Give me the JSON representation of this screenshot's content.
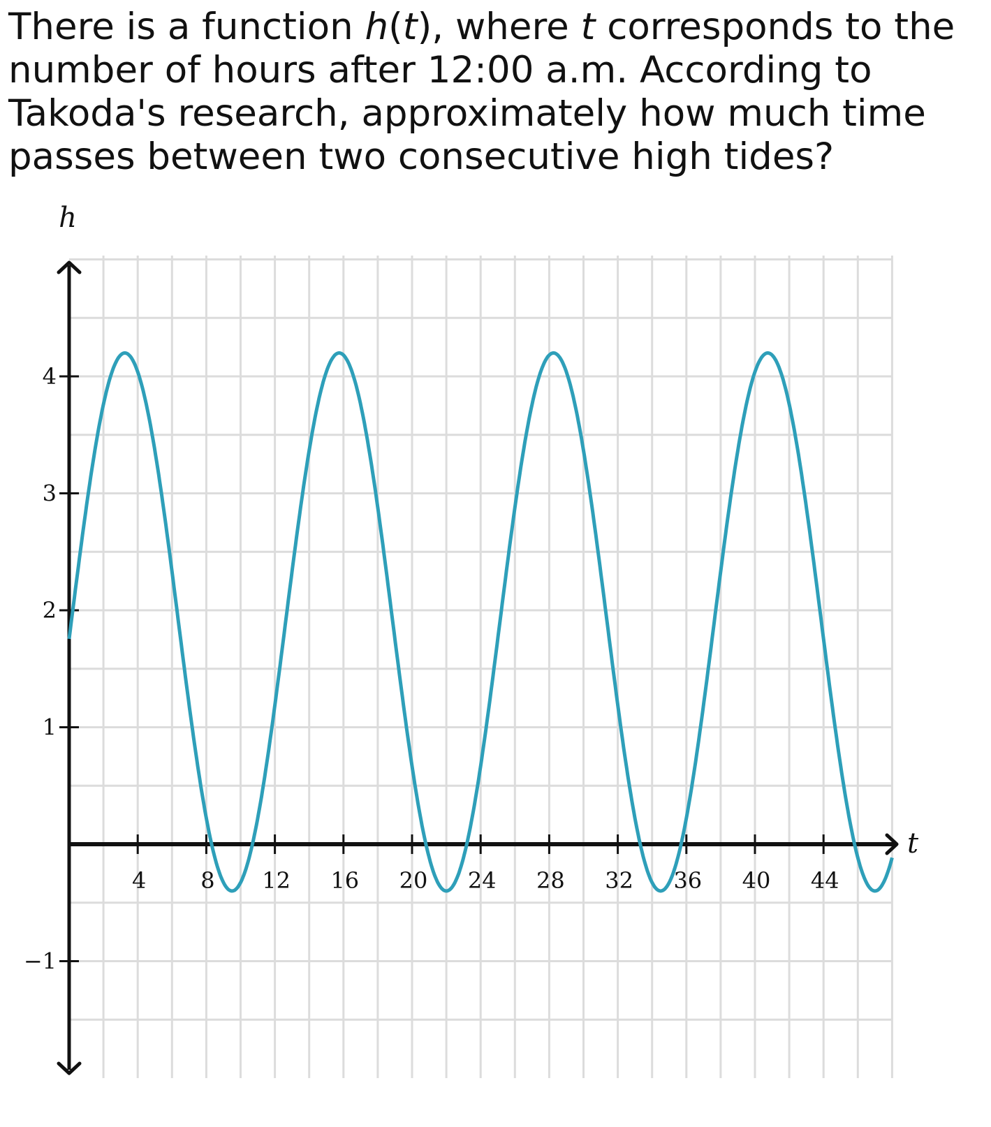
{
  "question": {
    "p1": "There is a function ",
    "func_name": "h",
    "p2": "(",
    "var1": "t",
    "p3": "), where ",
    "var2": "t",
    "p4": " corresponds to the number of hours after 12:00 a.m. According to Takoda's research, approximately how much time passes between two consecutive high tides?"
  },
  "chart_data": {
    "type": "line",
    "title": "",
    "xlabel": "t",
    "ylabel": "h",
    "xlim": [
      0,
      48
    ],
    "ylim": [
      -1.9,
      5
    ],
    "x_ticks": [
      4,
      8,
      12,
      16,
      20,
      24,
      28,
      32,
      36,
      40,
      44
    ],
    "x_tick_labels": [
      "4",
      "8",
      "12",
      "16",
      "20",
      "24",
      "28",
      "32",
      "36",
      "40",
      "44"
    ],
    "y_ticks": [
      -1,
      1,
      2,
      3,
      4
    ],
    "y_tick_labels": [
      "−1",
      "1",
      "2",
      "3",
      "4"
    ],
    "x_grid_step": 2,
    "y_grid_step": 0.5,
    "grid": true,
    "series": [
      {
        "color": "#2e9fb9",
        "function": {
          "kind": "sinusoid",
          "midline": 1.9,
          "amplitude": 2.3,
          "period": 12.5,
          "peak_at": 3.25
        },
        "x_range": [
          0,
          48
        ]
      }
    ],
    "colors": {
      "axis": "#111111",
      "grid": "#dcdcdc"
    }
  }
}
